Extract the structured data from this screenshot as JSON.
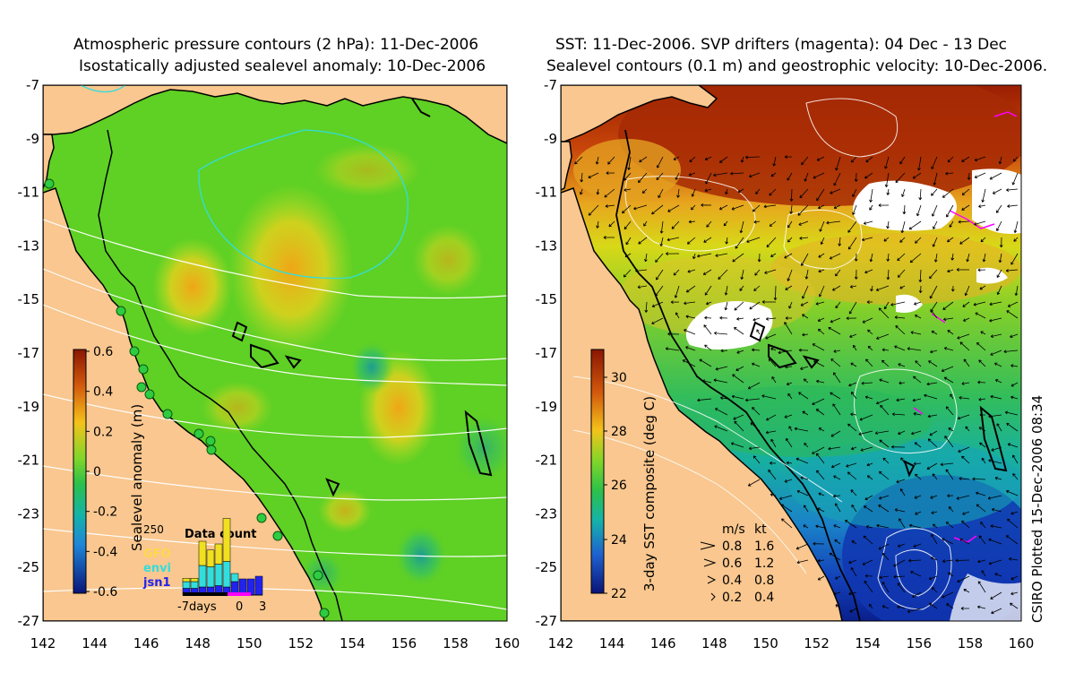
{
  "left_panel": {
    "title_line1": "Atmospheric pressure contours (2 hPa): 11-Dec-2006",
    "title_line2": "Isostatically adjusted sealevel anomaly: 10-Dec-2006",
    "colorbar": {
      "label": "Sealevel anomaly (m)",
      "ticks": [
        "0.6",
        "0.4",
        "0.2",
        "0",
        "-0.2",
        "-0.4",
        "-0.6"
      ]
    },
    "data_count": {
      "title": "Data count",
      "ymax_label": "250",
      "legend": [
        {
          "name": "GFO",
          "color": "#ffd84a"
        },
        {
          "name": "envi",
          "color": "#33dddd"
        },
        {
          "name": "jsn1",
          "color": "#2222ee"
        }
      ],
      "xlabel_left": "-7days",
      "xlabel_mid": "0",
      "xlabel_right": "3",
      "bars": [
        {
          "jsn1": 0.1,
          "envi": 0.1,
          "gfo": 0.05
        },
        {
          "jsn1": 0.1,
          "envi": 0.1,
          "gfo": 0.05
        },
        {
          "jsn1": 0.12,
          "envi": 0.32,
          "gfo": 0.36
        },
        {
          "jsn1": 0.12,
          "envi": 0.3,
          "gfo": 0.25
        },
        {
          "jsn1": 0.14,
          "envi": 0.32,
          "gfo": 0.3
        },
        {
          "jsn1": 0.12,
          "envi": 0.38,
          "gfo": 0.64
        },
        {
          "jsn1": 0.2,
          "envi": 0.12,
          "gfo": 0.0
        },
        {
          "jsn1": 0.24,
          "envi": 0.0,
          "gfo": 0.0
        },
        {
          "jsn1": 0.24,
          "envi": 0.0,
          "gfo": 0.0
        },
        {
          "jsn1": 0.28,
          "envi": 0.0,
          "gfo": 0.0
        }
      ]
    }
  },
  "right_panel": {
    "title_line1": "SST: 11-Dec-2006. SVP drifters (magenta): 04 Dec - 13 Dec",
    "title_line2": "Sealevel contours (0.1 m) and geostrophic velocity: 10-Dec-2006.",
    "colorbar": {
      "label": "3-day SST composite (deg C)",
      "ticks": [
        "30",
        "28",
        "26",
        "24",
        "22"
      ]
    },
    "velocity_legend": {
      "header_ms": "m/s",
      "header_kt": "kt",
      "rows": [
        {
          "ms": "0.8",
          "kt": "1.6",
          "scale": 1.0
        },
        {
          "ms": "0.6",
          "kt": "1.2",
          "scale": 0.75
        },
        {
          "ms": "0.4",
          "kt": "0.8",
          "scale": 0.5
        },
        {
          "ms": "0.2",
          "kt": "0.4",
          "scale": 0.25
        }
      ]
    }
  },
  "axes": {
    "y_ticks": [
      "-7",
      "-9",
      "-11",
      "-13",
      "-15",
      "-17",
      "-19",
      "-21",
      "-23",
      "-25",
      "-27"
    ],
    "x_ticks": [
      "142",
      "144",
      "146",
      "148",
      "150",
      "152",
      "154",
      "156",
      "158",
      "160"
    ]
  },
  "credit": "CSIRO Plotted 15-Dec-2006 08:34",
  "colors": {
    "land": "#f9c78f",
    "sla_base": "#5fd024",
    "sla_high": "#f3b71b",
    "sla_low": "#17a98a",
    "sst_hot": "#b83a08",
    "sst_warm": "#f0a020",
    "sst_mid": "#8ad22a",
    "sst_cool": "#16b6a2",
    "sst_cold": "#0a2fb0"
  }
}
